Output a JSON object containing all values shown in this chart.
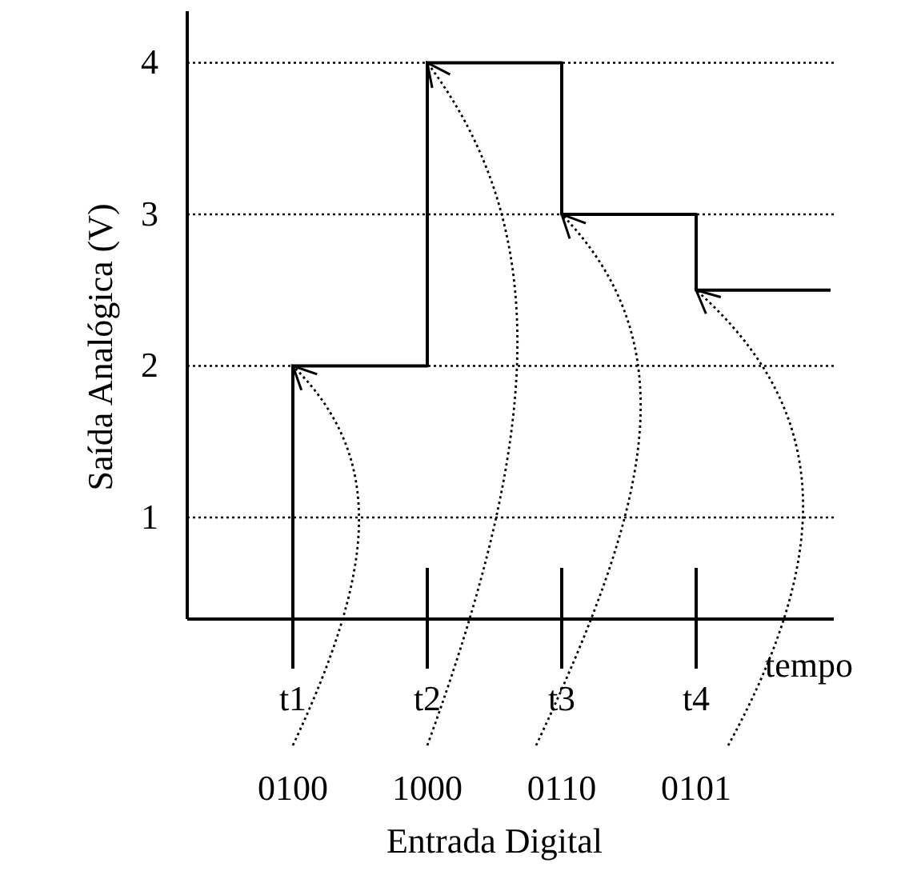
{
  "chart_data": {
    "type": "step",
    "xlabel": "tempo",
    "ylabel": "Saída Analógica (V)",
    "categories": [
      "t1",
      "t2",
      "t3",
      "t4",
      null
    ],
    "series": [
      {
        "color": "#000000",
        "values": [
          2,
          4,
          3,
          2.5,
          2.5
        ]
      }
    ],
    "ylim": [
      0.33,
      4.34
    ],
    "yticks": [
      1,
      2,
      3,
      4
    ],
    "grid": "y",
    "line_style": "solid",
    "marker": "none",
    "annotations": [
      {
        "text": "0100",
        "x": "t1",
        "y": 2
      },
      {
        "text": "1000",
        "x": "t2",
        "y": 4
      },
      {
        "text": "0110",
        "x": "t3",
        "y": 3
      },
      {
        "text": "0101",
        "x": "t4",
        "y": 2.5
      },
      "Entrada Digital"
    ]
  }
}
